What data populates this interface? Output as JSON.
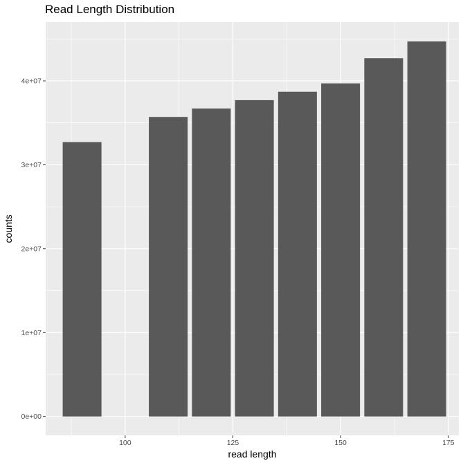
{
  "chart_data": {
    "type": "bar",
    "title": "Read Length Distribution",
    "xlabel": "read length",
    "ylabel": "counts",
    "x": [
      90,
      110,
      120,
      130,
      140,
      150,
      160,
      170
    ],
    "values": [
      32700000,
      35700000,
      36700000,
      37700000,
      38700000,
      39700000,
      42700000,
      44700000
    ],
    "bar_width": 9,
    "xlim": [
      81.55,
      177.45
    ],
    "ylim": [
      -2250000,
      47000000
    ],
    "x_ticks": [
      100,
      125,
      150,
      175
    ],
    "x_tick_labels": [
      "100",
      "125",
      "150",
      "175"
    ],
    "x_minor_ticks": [
      87.5,
      112.5,
      137.5,
      162.5
    ],
    "y_ticks": [
      0,
      10000000,
      20000000,
      30000000,
      40000000
    ],
    "y_tick_labels": [
      "0e+00",
      "1e+07",
      "2e+07",
      "3e+07",
      "4e+07"
    ],
    "y_minor_ticks": [
      5000000,
      15000000,
      25000000,
      35000000,
      45000000
    ],
    "grid": true,
    "legend": "none",
    "colors": {
      "panel_background": "#ebebeb",
      "grid_major": "#ffffff",
      "bar_fill": "#595959",
      "tick_text": "#4d4d4d",
      "tick_mark": "#333333"
    }
  }
}
